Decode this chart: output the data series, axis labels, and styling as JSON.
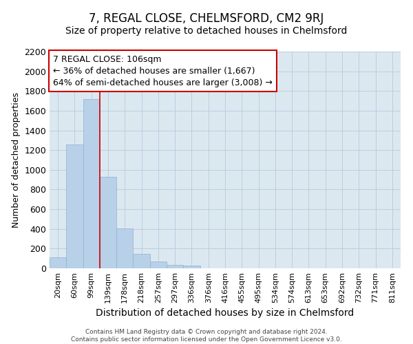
{
  "title": "7, REGAL CLOSE, CHELMSFORD, CM2 9RJ",
  "subtitle": "Size of property relative to detached houses in Chelmsford",
  "xlabel": "Distribution of detached houses by size in Chelmsford",
  "ylabel": "Number of detached properties",
  "footer_line1": "Contains HM Land Registry data © Crown copyright and database right 2024.",
  "footer_line2": "Contains public sector information licensed under the Open Government Licence v3.0.",
  "categories": [
    "20sqm",
    "60sqm",
    "99sqm",
    "139sqm",
    "178sqm",
    "218sqm",
    "257sqm",
    "297sqm",
    "336sqm",
    "376sqm",
    "416sqm",
    "455sqm",
    "495sqm",
    "534sqm",
    "574sqm",
    "613sqm",
    "653sqm",
    "692sqm",
    "732sqm",
    "771sqm",
    "811sqm"
  ],
  "values": [
    110,
    1260,
    1720,
    930,
    405,
    150,
    70,
    35,
    25,
    0,
    0,
    0,
    0,
    0,
    0,
    0,
    0,
    0,
    0,
    0,
    0
  ],
  "bar_color": "#b8d0e8",
  "bar_edgecolor": "#8ab4d4",
  "redline_x": 2.5,
  "annotation_line1": "7 REGAL CLOSE: 106sqm",
  "annotation_line2": "← 36% of detached houses are smaller (1,667)",
  "annotation_line3": "64% of semi-detached houses are larger (3,008) →",
  "annotation_box_facecolor": "white",
  "annotation_box_edgecolor": "#cc0000",
  "redline_color": "#cc0000",
  "ylim": [
    0,
    2200
  ],
  "yticks": [
    0,
    200,
    400,
    600,
    800,
    1000,
    1200,
    1400,
    1600,
    1800,
    2000,
    2200
  ],
  "grid_color": "#b8cfe0",
  "background_color": "#dce8f0",
  "title_fontsize": 12,
  "subtitle_fontsize": 10,
  "tick_fontsize": 8,
  "ylabel_fontsize": 9,
  "xlabel_fontsize": 10,
  "annotation_fontsize": 9
}
